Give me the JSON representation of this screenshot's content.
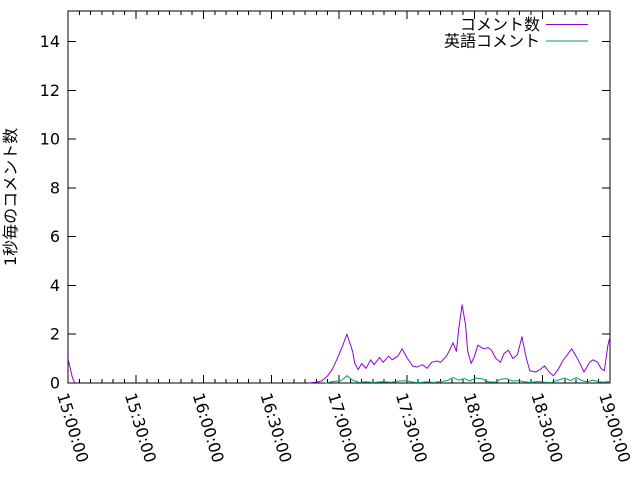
{
  "chart_data": {
    "type": "line",
    "title": "",
    "xlabel": "",
    "ylabel": "1秒毎のコメント数",
    "x_axis_kind": "time",
    "x_tick_labels": [
      "15:00:00",
      "15:30:00",
      "16:00:00",
      "16:30:00",
      "17:00:00",
      "17:30:00",
      "18:00:00",
      "18:30:00",
      "19:00:00"
    ],
    "x_range_minutes": [
      0,
      240
    ],
    "x_major_interval_min": 30,
    "x_minor_interval_min": 5,
    "x_tick_label_rotation_deg": 73,
    "y_ticks": [
      0,
      2,
      4,
      6,
      8,
      10,
      12,
      14
    ],
    "ylim": [
      0,
      15.25
    ],
    "grid": false,
    "legend_position": "top-right-inside",
    "frame_color": "#000000",
    "background_color": "#ffffff",
    "series": [
      {
        "name": "コメント数",
        "color": "#9400d3",
        "x_unit": "minutes_after_15:00:00",
        "segments": [
          [
            [
              0,
              1.0
            ],
            [
              2,
              0.2
            ],
            [
              3,
              0
            ]
          ],
          [
            [
              107,
              0
            ],
            [
              111,
              0.05
            ],
            [
              112.5,
              0.1
            ],
            [
              115,
              0.3
            ],
            [
              117,
              0.55
            ],
            [
              119,
              0.95
            ],
            [
              121.5,
              1.5
            ],
            [
              123.5,
              2.0
            ],
            [
              126,
              1.3
            ],
            [
              127,
              0.8
            ],
            [
              128.5,
              0.55
            ],
            [
              130,
              0.8
            ],
            [
              132,
              0.6
            ],
            [
              134,
              0.95
            ],
            [
              135.5,
              0.75
            ],
            [
              138,
              1.05
            ],
            [
              139.5,
              0.85
            ],
            [
              142,
              1.1
            ],
            [
              143.5,
              0.95
            ],
            [
              146,
              1.1
            ],
            [
              148,
              1.4
            ],
            [
              150,
              1.05
            ],
            [
              152.5,
              0.7
            ],
            [
              154.5,
              0.65
            ],
            [
              157,
              0.75
            ],
            [
              159,
              0.6
            ],
            [
              161,
              0.85
            ],
            [
              163.5,
              0.9
            ],
            [
              165,
              0.85
            ],
            [
              167.5,
              1.1
            ],
            [
              169,
              1.35
            ],
            [
              170.5,
              1.65
            ],
            [
              172,
              1.3
            ],
            [
              173,
              2.2
            ],
            [
              174.5,
              3.2
            ],
            [
              176,
              2.4
            ],
            [
              177,
              1.3
            ],
            [
              178.5,
              0.8
            ],
            [
              180,
              1.1
            ],
            [
              181.5,
              1.55
            ],
            [
              184,
              1.4
            ],
            [
              186,
              1.45
            ],
            [
              187.5,
              1.35
            ],
            [
              189.5,
              1.0
            ],
            [
              191.5,
              0.85
            ],
            [
              193,
              1.2
            ],
            [
              195,
              1.35
            ],
            [
              197,
              1.0
            ],
            [
              199,
              1.15
            ],
            [
              201,
              1.9
            ],
            [
              203,
              1.0
            ],
            [
              204.5,
              0.5
            ],
            [
              207,
              0.45
            ],
            [
              209,
              0.55
            ],
            [
              211,
              0.7
            ],
            [
              213,
              0.45
            ],
            [
              215,
              0.3
            ],
            [
              217,
              0.55
            ],
            [
              219,
              0.9
            ],
            [
              221.5,
              1.2
            ],
            [
              223,
              1.4
            ],
            [
              225,
              1.1
            ],
            [
              227,
              0.75
            ],
            [
              228.5,
              0.45
            ],
            [
              231,
              0.85
            ],
            [
              232.5,
              0.95
            ],
            [
              234.5,
              0.85
            ],
            [
              236,
              0.6
            ],
            [
              237.5,
              0.5
            ],
            [
              239,
              1.5
            ],
            [
              240,
              1.9
            ]
          ]
        ]
      },
      {
        "name": "英語コメント",
        "color": "#009e73",
        "x_unit": "minutes_after_15:00:00",
        "segments": [
          [
            [
              114,
              0
            ],
            [
              117,
              0.05
            ],
            [
              121,
              0.1
            ],
            [
              123.5,
              0.3
            ],
            [
              126,
              0.12
            ],
            [
              129,
              0.02
            ],
            [
              132,
              0.05
            ],
            [
              135,
              0.02
            ],
            [
              139,
              0.05
            ],
            [
              143,
              0.03
            ],
            [
              147,
              0.08
            ],
            [
              150,
              0.1
            ],
            [
              153,
              0.03
            ],
            [
              156,
              0.02
            ],
            [
              159,
              0.05
            ],
            [
              162,
              0.02
            ],
            [
              165,
              0.06
            ],
            [
              168,
              0.1
            ],
            [
              170.5,
              0.22
            ],
            [
              173,
              0.12
            ],
            [
              175.5,
              0.18
            ],
            [
              178,
              0.08
            ],
            [
              180.5,
              0.2
            ],
            [
              183,
              0.18
            ],
            [
              186,
              0.05
            ],
            [
              189,
              0.03
            ],
            [
              191.5,
              0.15
            ],
            [
              194,
              0.18
            ],
            [
              197,
              0.08
            ],
            [
              199.5,
              0.1
            ],
            [
              202,
              0.05
            ],
            [
              205,
              0.02
            ],
            [
              208,
              0.06
            ],
            [
              211,
              0.03
            ],
            [
              214,
              0.02
            ],
            [
              217,
              0.12
            ],
            [
              220,
              0.2
            ],
            [
              222.5,
              0.1
            ],
            [
              225,
              0.22
            ],
            [
              227.5,
              0.1
            ],
            [
              230,
              0.05
            ],
            [
              232.5,
              0.12
            ],
            [
              235,
              0.05
            ],
            [
              237,
              0.03
            ],
            [
              238.5,
              0.05
            ],
            [
              240,
              0.06
            ]
          ]
        ]
      }
    ],
    "legend": [
      {
        "label": "コメント数",
        "color": "#9400d3"
      },
      {
        "label": "英語コメント",
        "color": "#009e73"
      }
    ]
  }
}
